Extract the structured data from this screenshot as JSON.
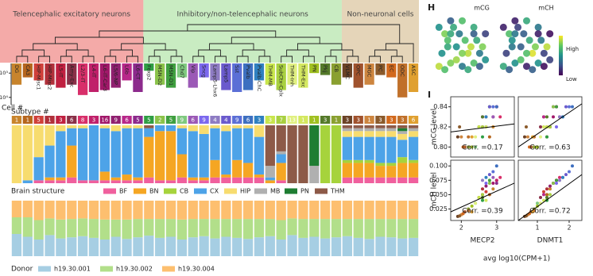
{
  "chart_data": [
    {
      "type": "cluster-tree",
      "panel": "D",
      "groups": [
        {
          "label": "Telencephalic excitatory neurons",
          "color": "#f4aaa8"
        },
        {
          "label": "Inhibitory/non-telencephalic neurons",
          "color": "#c9ecc2"
        },
        {
          "label": "Non-neuronal cells",
          "color": "#e5d5b9"
        }
      ],
      "categories": [
        "DG",
        "CA3",
        "HIP-Misc1",
        "HIP-Misc2",
        "L5-IT",
        "Amy-Exc",
        "L2/3-IT",
        "L4-IT",
        "L6-IT-Car3",
        "L5/6-NP",
        "L6b",
        "L6-CT",
        "Foxp2",
        "MSN-D2",
        "MSN-D1",
        "Chd7",
        "Vip",
        "Sncg",
        "Lamp5-Lhx6",
        "Lamp5",
        "Sst",
        "Pvalb",
        "Pvalb-ChC",
        "THM-MB",
        "SubCtx-Cplx",
        "THM-Inh",
        "THM-Exc",
        "PN",
        "Pkj",
        "CB",
        "VLMC",
        "OPC",
        "MGC",
        "PC",
        "EC",
        "ODC",
        "ASC"
      ],
      "colors": [
        "#c8842c",
        "#b5651d",
        "#d0403a",
        "#b0303a",
        "#c02040",
        "#8a3048",
        "#d82f6a",
        "#c0206a",
        "#a2186a",
        "#902070",
        "#b8288a",
        "#8c2a8c",
        "#2f9e44",
        "#8bc34a",
        "#3f9f3f",
        "#7fc97f",
        "#9b59b6",
        "#7b68ee",
        "#8e7cc3",
        "#6a5acd",
        "#5b6fd6",
        "#3d6fc0",
        "#2f80c0",
        "#c8e64c",
        "#a8d040",
        "#e0f080",
        "#d4e860",
        "#a0c020",
        "#557a2a",
        "#8aa030",
        "#6b4226",
        "#a0522d",
        "#cd853f",
        "#8b5a2b",
        "#d2691e",
        "#c0702a",
        "#e0a030"
      ],
      "cell_label": "Cell #",
      "cell_counts": [
        3000,
        1500,
        2000,
        3000,
        4000,
        3000,
        8000,
        6000,
        5000,
        4000,
        2000,
        6000,
        800,
        3000,
        4000,
        1500,
        4000,
        1500,
        2000,
        5000,
        6000,
        5000,
        2000,
        3000,
        5000,
        3000,
        4000,
        1000,
        1200,
        3000,
        1500,
        4000,
        3000,
        1200,
        1500,
        10000,
        6000
      ],
      "ylim": [
        400,
        20000
      ],
      "log_scale": true,
      "yticks": [
        {
          "value": 1000,
          "label": "10³"
        },
        {
          "value": 10000,
          "label": "10⁴"
        }
      ],
      "subtype_label": "Subtype #",
      "subtypes": [
        1,
        1,
        5,
        1,
        3,
        6,
        8,
        3,
        16,
        9,
        6,
        5,
        5,
        2,
        5,
        9,
        6,
        9,
        4,
        4,
        9,
        6,
        3,
        3,
        7,
        13,
        1,
        1,
        3,
        1,
        3,
        3,
        1,
        3,
        3,
        3,
        6
      ]
    },
    {
      "type": "stacked-bar",
      "legend_title": "Brain structure",
      "ylim": [
        0,
        100
      ],
      "series": [
        {
          "name": "BF",
          "color": "#f0609e",
          "values": [
            0,
            0,
            5,
            5,
            5,
            10,
            5,
            5,
            5,
            5,
            5,
            5,
            10,
            5,
            5,
            10,
            5,
            5,
            10,
            10,
            10,
            10,
            10,
            0,
            5,
            0,
            0,
            0,
            0,
            0,
            10,
            10,
            10,
            10,
            10,
            10,
            10
          ]
        },
        {
          "name": "BN",
          "color": "#f5a623",
          "values": [
            0,
            0,
            0,
            5,
            5,
            55,
            0,
            0,
            15,
            5,
            10,
            5,
            70,
            85,
            85,
            40,
            5,
            5,
            30,
            5,
            30,
            25,
            5,
            5,
            30,
            0,
            0,
            0,
            0,
            0,
            25,
            25,
            25,
            20,
            20,
            25,
            25
          ]
        },
        {
          "name": "CB",
          "color": "#a6d33c",
          "values": [
            0,
            0,
            0,
            0,
            0,
            0,
            0,
            0,
            0,
            0,
            0,
            0,
            0,
            0,
            0,
            0,
            0,
            0,
            0,
            0,
            0,
            0,
            0,
            0,
            0,
            0,
            0,
            0,
            100,
            100,
            5,
            5,
            5,
            5,
            5,
            10,
            5
          ]
        },
        {
          "name": "CX",
          "color": "#4da3e8",
          "values": [
            0,
            5,
            40,
            55,
            80,
            30,
            90,
            95,
            75,
            80,
            80,
            85,
            15,
            10,
            10,
            45,
            80,
            75,
            55,
            75,
            55,
            60,
            65,
            5,
            15,
            0,
            0,
            0,
            0,
            0,
            40,
            40,
            40,
            45,
            45,
            30,
            40
          ]
        },
        {
          "name": "HIP",
          "color": "#f7dc6f",
          "values": [
            100,
            95,
            55,
            35,
            10,
            5,
            5,
            0,
            5,
            10,
            5,
            5,
            0,
            0,
            0,
            5,
            10,
            15,
            5,
            10,
            5,
            5,
            20,
            0,
            0,
            0,
            0,
            0,
            0,
            0,
            10,
            10,
            10,
            10,
            10,
            10,
            10
          ]
        },
        {
          "name": "MB",
          "color": "#b0b0b0",
          "values": [
            0,
            0,
            0,
            0,
            0,
            0,
            0,
            0,
            0,
            0,
            0,
            0,
            0,
            0,
            0,
            0,
            0,
            0,
            0,
            0,
            0,
            0,
            0,
            20,
            5,
            0,
            0,
            30,
            0,
            0,
            5,
            5,
            5,
            5,
            5,
            5,
            5
          ]
        },
        {
          "name": "PN",
          "color": "#1e7d32",
          "values": [
            0,
            0,
            0,
            0,
            0,
            0,
            0,
            0,
            0,
            0,
            0,
            0,
            0,
            0,
            0,
            0,
            0,
            0,
            0,
            0,
            0,
            0,
            0,
            0,
            0,
            0,
            0,
            70,
            0,
            0,
            0,
            0,
            0,
            0,
            0,
            5,
            0
          ]
        },
        {
          "name": "THM",
          "color": "#8d5a48",
          "values": [
            0,
            0,
            0,
            0,
            0,
            0,
            0,
            0,
            0,
            0,
            0,
            0,
            5,
            0,
            0,
            0,
            0,
            0,
            0,
            0,
            0,
            0,
            0,
            70,
            45,
            100,
            100,
            0,
            0,
            0,
            5,
            5,
            5,
            5,
            5,
            5,
            5
          ]
        }
      ]
    },
    {
      "type": "stacked-bar",
      "legend_title": "Donor",
      "ylim": [
        0,
        100
      ],
      "series": [
        {
          "name": "h19.30.001",
          "color": "#a6cee3",
          "values": [
            40,
            35,
            30,
            38,
            32,
            34,
            36,
            33,
            30,
            35,
            31,
            34,
            37,
            33,
            35,
            30,
            34,
            36,
            32,
            35,
            33,
            31,
            34,
            36,
            30,
            38,
            33,
            35,
            32,
            34,
            36,
            33,
            31,
            35,
            34,
            32,
            33
          ]
        },
        {
          "name": "h19.30.002",
          "color": "#b2df8a",
          "values": [
            30,
            35,
            35,
            30,
            34,
            33,
            32,
            34,
            36,
            31,
            35,
            33,
            30,
            34,
            32,
            36,
            33,
            31,
            35,
            32,
            34,
            36,
            33,
            31,
            35,
            30,
            34,
            32,
            35,
            33,
            31,
            34,
            36,
            32,
            33,
            35,
            34
          ]
        },
        {
          "name": "h19.30.004",
          "color": "#fdbf6f",
          "values": [
            30,
            30,
            35,
            32,
            34,
            33,
            32,
            33,
            34,
            34,
            34,
            33,
            33,
            33,
            33,
            34,
            33,
            33,
            33,
            33,
            33,
            33,
            33,
            33,
            35,
            32,
            33,
            33,
            33,
            33,
            33,
            33,
            33,
            33,
            33,
            33,
            33
          ]
        }
      ]
    },
    {
      "type": "umap",
      "panel": "H",
      "x": [
        1,
        2,
        3,
        1.5,
        2.5,
        4,
        5,
        6,
        7,
        8,
        9,
        8.5,
        7.5,
        6.5,
        5.5,
        4.5,
        3.5,
        2,
        1,
        3,
        5,
        7,
        9,
        6,
        4,
        2.5,
        8,
        5,
        3,
        7
      ],
      "y": [
        2,
        1.5,
        2.5,
        4,
        5,
        3,
        2,
        1.5,
        2.5,
        2,
        3,
        5,
        6,
        5,
        6,
        7,
        8,
        7,
        8,
        9,
        9,
        8,
        7,
        4,
        5,
        6,
        4,
        4,
        7,
        7
      ],
      "series": [
        {
          "name": "mCG",
          "values": [
            0.9,
            0.7,
            0.8,
            0.5,
            0.6,
            0.85,
            0.4,
            0.6,
            0.7,
            0.3,
            0.5,
            0.8,
            0.6,
            0.9,
            0.7,
            0.4,
            0.6,
            0.8,
            0.5,
            0.3,
            0.7,
            0.6,
            0.2,
            0.9,
            0.5,
            0.7,
            0.4,
            0.8,
            0.6,
            0.3
          ]
        },
        {
          "name": "mCH",
          "values": [
            0.6,
            0.3,
            0.5,
            0.2,
            0.4,
            0.7,
            0.1,
            0.3,
            0.5,
            0.05,
            0.2,
            0.9,
            0.4,
            0.8,
            0.6,
            0.3,
            0.2,
            0.7,
            0.1,
            0.1,
            0.6,
            0.4,
            0.05,
            0.95,
            0.3,
            0.5,
            0.2,
            0.7,
            0.4,
            0.1
          ]
        }
      ],
      "colorbar_labels": [
        "High",
        "Low"
      ]
    },
    {
      "type": "scatter-grid",
      "panel": "I",
      "xlabel": "avg log10(CPM+1)",
      "rows": [
        {
          "ylabel": "mCG level",
          "ylim": [
            0.79,
            0.85
          ],
          "yticks": [
            {
              "value": 0.8,
              "label": "0.80"
            },
            0.82,
            0.84
          ],
          "values": [
            0.82,
            0.81,
            0.83,
            0.82,
            0.84,
            0.82,
            0.83,
            0.84,
            0.83,
            0.82,
            0.83,
            0.84,
            0.81,
            0.84,
            0.84,
            0.8,
            0.83,
            0.82,
            0.83,
            0.84,
            0.84,
            0.84,
            0.83,
            0.82,
            0.82,
            0.81,
            0.82,
            0.8,
            0.83,
            0.8,
            0.81,
            0.8,
            0.81,
            0.82,
            0.8,
            0.81,
            0.81
          ]
        },
        {
          "ylabel": "mCH level",
          "ylim": [
            0.005,
            0.11
          ],
          "yticks": [
            0.025,
            {
              "value": 0.05,
              "label": "0.050"
            },
            0.075,
            {
              "value": 0.1,
              "label": "0.100"
            }
          ],
          "values": [
            0.06,
            0.05,
            0.055,
            0.06,
            0.075,
            0.045,
            0.08,
            0.075,
            0.07,
            0.065,
            0.05,
            0.07,
            0.04,
            0.07,
            0.075,
            0.035,
            0.08,
            0.07,
            0.075,
            0.085,
            0.09,
            0.1,
            0.08,
            0.045,
            0.05,
            0.035,
            0.04,
            0.03,
            0.045,
            0.025,
            0.012,
            0.02,
            0.015,
            0.013,
            0.017,
            0.022,
            0.02
          ]
        }
      ],
      "cols": [
        {
          "xlabel": "MECP2",
          "xlim": [
            1.7,
            3.5
          ],
          "xticks": [
            2,
            3
          ],
          "values": [
            2.9,
            2.8,
            2.7,
            2.6,
            3.0,
            2.5,
            3.1,
            3.0,
            2.9,
            2.7,
            2.6,
            3.0,
            2.6,
            2.8,
            2.8,
            2.4,
            2.9,
            2.7,
            2.6,
            2.8,
            2.9,
            3.0,
            2.7,
            2.5,
            2.6,
            2.4,
            2.7,
            2.3,
            2.6,
            2.2,
            1.9,
            2.1,
            2.0,
            1.95,
            2.05,
            2.2,
            2.3
          ]
        },
        {
          "xlabel": "DNMT1",
          "xlim": [
            0.4,
            2.4
          ],
          "xticks": [
            1,
            2
          ],
          "values": [
            1.4,
            1.3,
            1.2,
            1.3,
            1.6,
            1.1,
            1.7,
            1.6,
            1.5,
            1.4,
            1.2,
            1.5,
            1.3,
            1.5,
            1.6,
            1.0,
            1.8,
            1.6,
            1.7,
            1.9,
            2.0,
            2.1,
            1.8,
            1.3,
            1.4,
            1.1,
            1.2,
            1.0,
            1.3,
            0.9,
            0.6,
            0.8,
            0.7,
            0.65,
            0.75,
            0.9,
            0.85
          ]
        }
      ],
      "panels": [
        {
          "annotation": "Corr. =0.17",
          "fit": {
            "x": [
              1.7,
              3.5
            ],
            "y": [
              0.815,
              0.823
            ]
          }
        },
        {
          "annotation": "Corr. =0.63",
          "fit": {
            "x": [
              0.4,
              2.4
            ],
            "y": [
              0.8,
              0.843
            ]
          }
        },
        {
          "annotation": "Corr. =0.39",
          "fit": {
            "x": [
              1.7,
              3.5
            ],
            "y": [
              0.02,
              0.07
            ]
          }
        },
        {
          "annotation": "Corr. =0.72",
          "fit": {
            "x": [
              0.4,
              2.4
            ],
            "y": [
              0.005,
              0.085
            ]
          }
        }
      ]
    }
  ]
}
